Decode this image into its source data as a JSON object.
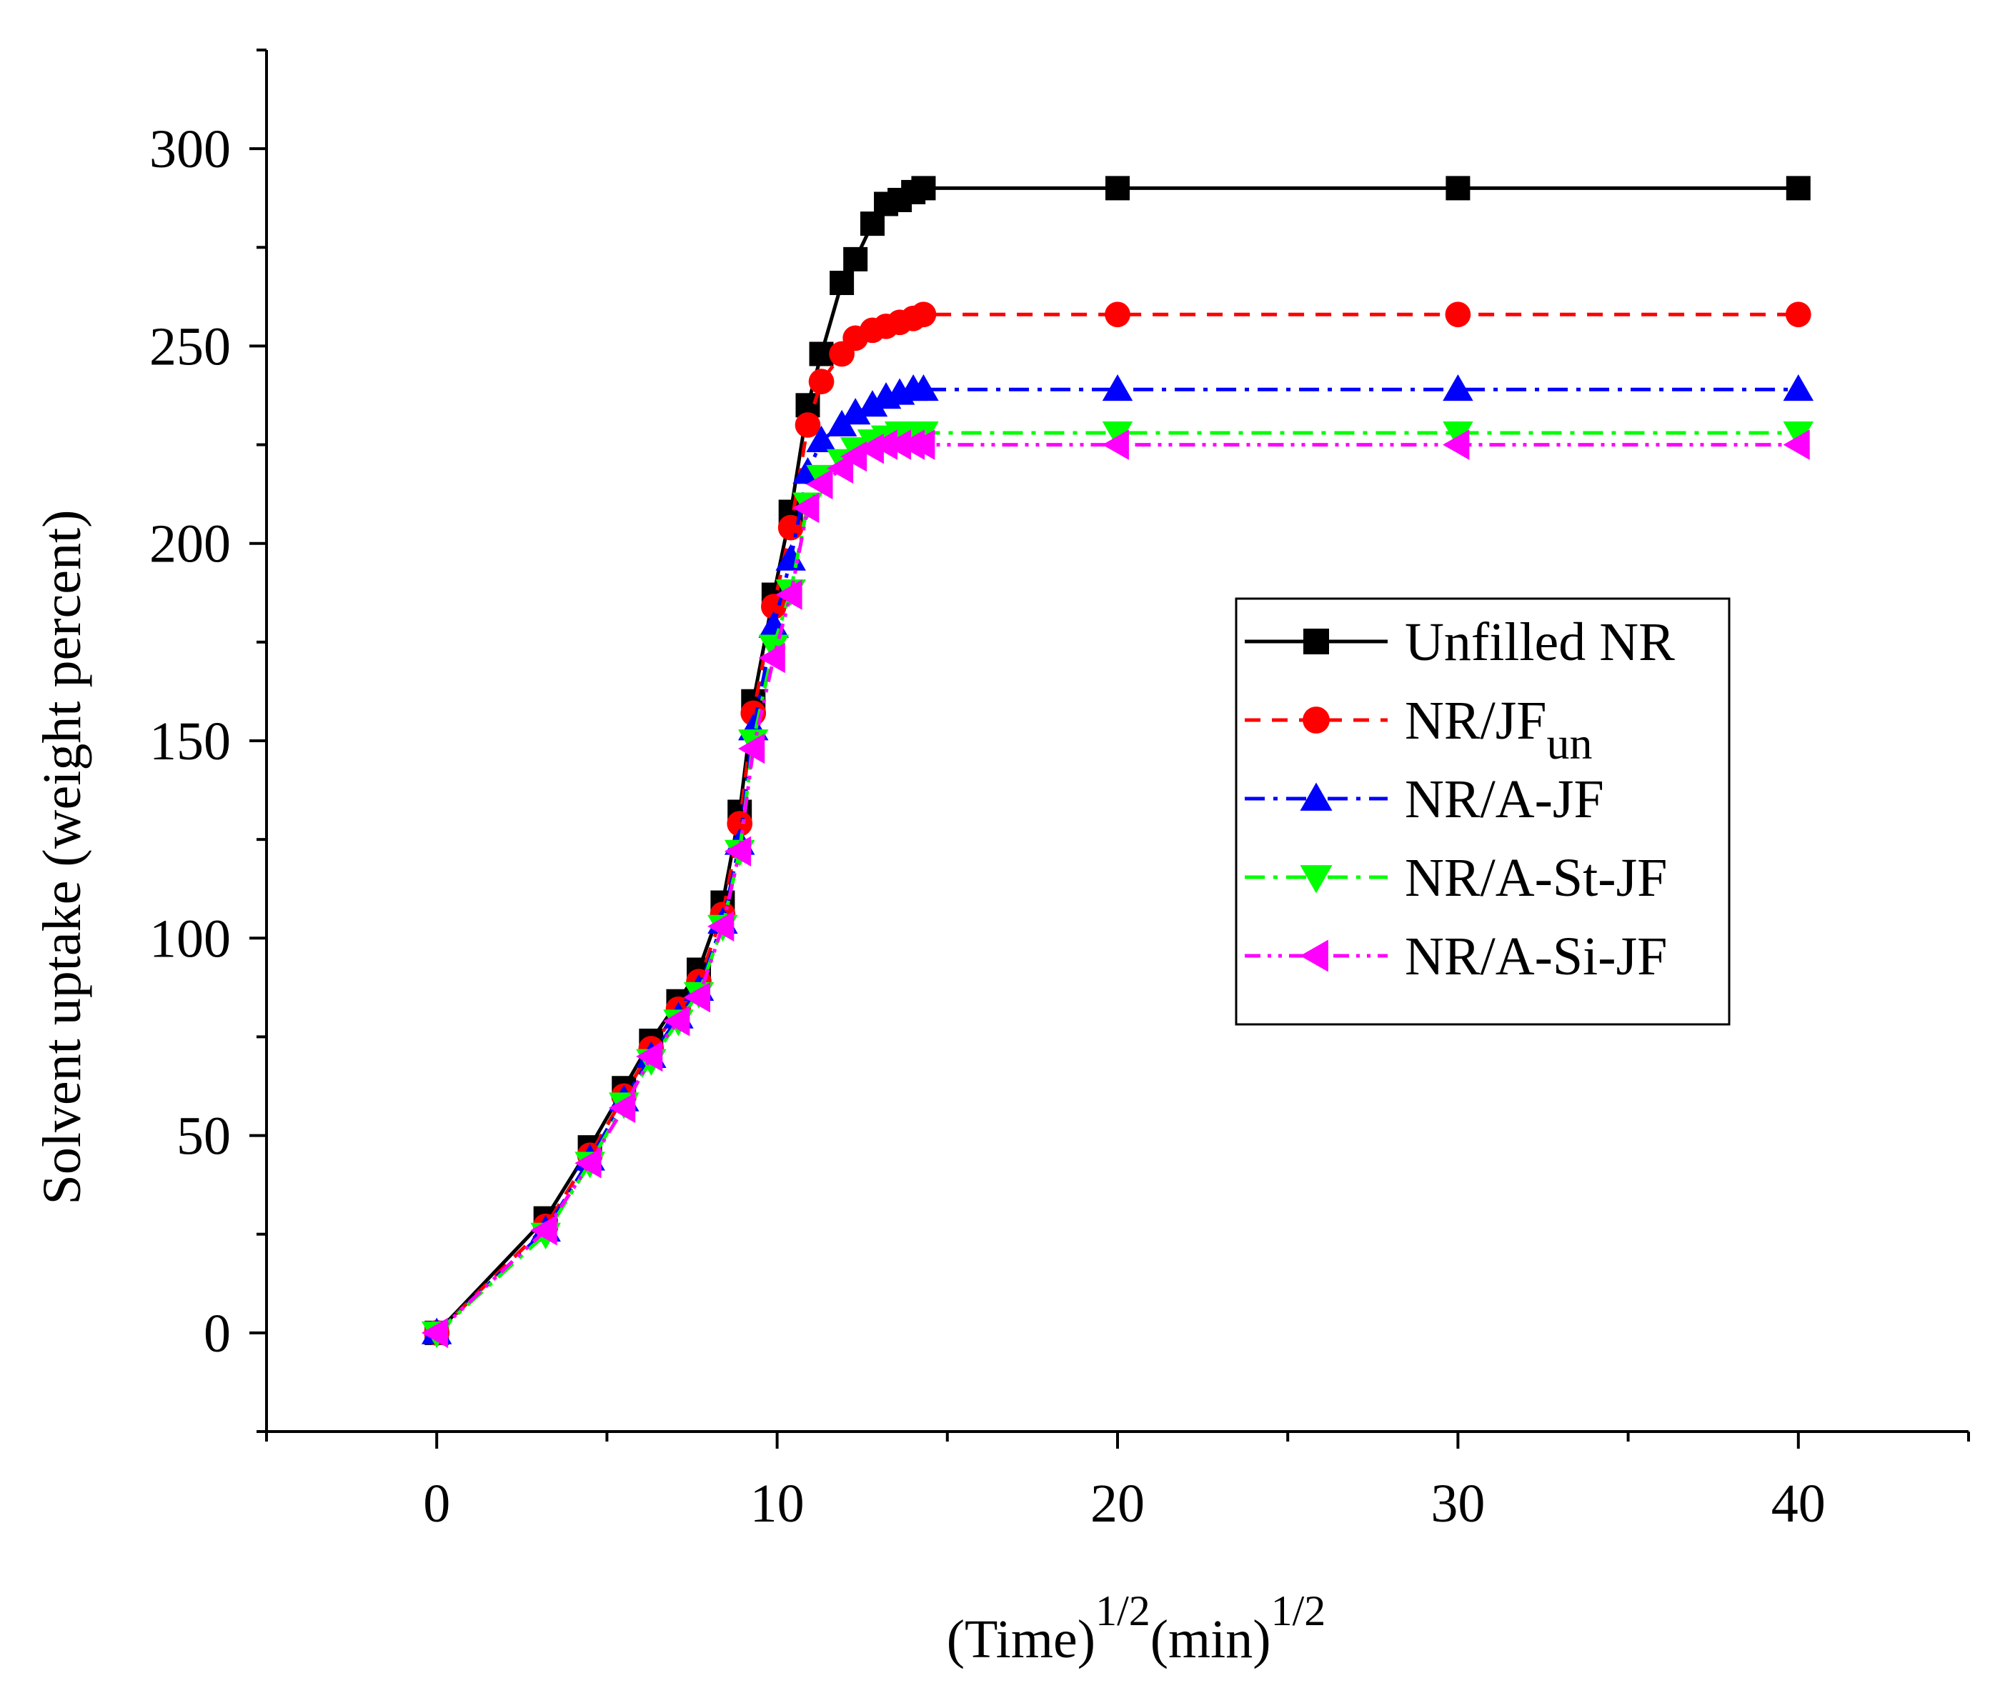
{
  "chart_data": {
    "type": "line",
    "title": "",
    "xlabel": "(Time)",
    "xlabel_sup": "1/2",
    "xlabel_unit": "(min)",
    "xlabel_unit_sup": "1/2",
    "ylabel": "Solvent uptake (weight percent)",
    "xlim": [
      -5,
      45
    ],
    "ylim": [
      -25,
      325
    ],
    "xticks": [
      0,
      10,
      20,
      30,
      40
    ],
    "yticks": [
      0,
      50,
      100,
      150,
      200,
      250,
      300
    ],
    "x_minor_step": 5,
    "y_minor_step": 25,
    "grid": false,
    "legend_position": "center-right",
    "series": [
      {
        "name": "Unfilled NR",
        "name_sub": "",
        "color": "#000000",
        "marker": "square",
        "dash": "solid",
        "x": [
          0,
          3.2,
          4.5,
          5.5,
          6.3,
          7.1,
          7.7,
          8.4,
          8.9,
          9.3,
          9.9,
          10.4,
          10.9,
          11.3,
          11.9,
          12.3,
          12.8,
          13.2,
          13.6,
          14.0,
          14.3,
          20,
          30,
          40
        ],
        "y": [
          0,
          29,
          47,
          62,
          74,
          84,
          92,
          109,
          132,
          160,
          187,
          208,
          235,
          248,
          266,
          272,
          281,
          286,
          287,
          289,
          290,
          290,
          290,
          290
        ]
      },
      {
        "name": "NR/JF",
        "name_sub": "un",
        "color": "#ff0000",
        "marker": "circle",
        "dash": "dashed",
        "x": [
          0,
          3.2,
          4.5,
          5.5,
          6.3,
          7.1,
          7.7,
          8.4,
          8.9,
          9.3,
          9.9,
          10.4,
          10.9,
          11.3,
          11.9,
          12.3,
          12.8,
          13.2,
          13.6,
          14.0,
          14.3,
          20,
          30,
          40
        ],
        "y": [
          0,
          27,
          45,
          60,
          72,
          82,
          89,
          106,
          129,
          157,
          184,
          204,
          230,
          241,
          248,
          252,
          254,
          255,
          256,
          257,
          258,
          258,
          258,
          258
        ]
      },
      {
        "name": "NR/A-JF",
        "name_sub": "",
        "color": "#0000ff",
        "marker": "triangle-up",
        "dash": "dashdot",
        "x": [
          0,
          3.2,
          4.5,
          5.5,
          6.3,
          7.1,
          7.7,
          8.4,
          8.9,
          9.3,
          9.9,
          10.4,
          10.9,
          11.3,
          11.9,
          12.3,
          12.8,
          13.2,
          13.6,
          14.0,
          14.3,
          20,
          30,
          40
        ],
        "y": [
          0,
          26,
          44,
          59,
          70,
          80,
          87,
          104,
          124,
          153,
          179,
          196,
          218,
          226,
          230,
          233,
          235,
          237,
          238,
          239,
          239,
          239,
          239,
          239
        ]
      },
      {
        "name": "NR/A-St-JF",
        "name_sub": "",
        "color": "#00ff00",
        "marker": "triangle-down",
        "dash": "dashdot",
        "x": [
          0,
          3.2,
          4.5,
          5.5,
          6.3,
          7.1,
          7.7,
          8.4,
          8.9,
          9.3,
          9.9,
          10.4,
          10.9,
          11.3,
          11.9,
          12.3,
          12.8,
          13.2,
          13.6,
          14.0,
          14.3,
          20,
          30,
          40
        ],
        "y": [
          0,
          25,
          43,
          58,
          69,
          79,
          86,
          103,
          122,
          150,
          174,
          188,
          210,
          217,
          221,
          224,
          226,
          227,
          228,
          228,
          228,
          228,
          228,
          228
        ]
      },
      {
        "name": "NR/A-Si-JF",
        "name_sub": "",
        "color": "#ff00ff",
        "marker": "triangle-left",
        "dash": "dashdotdot",
        "x": [
          0,
          3.2,
          4.5,
          5.5,
          6.3,
          7.1,
          7.7,
          8.4,
          8.9,
          9.3,
          9.9,
          10.4,
          10.9,
          11.3,
          11.9,
          12.3,
          12.8,
          13.2,
          13.6,
          14.0,
          14.3,
          20,
          30,
          40
        ],
        "y": [
          0,
          26,
          43,
          57,
          70,
          79,
          85,
          103,
          122,
          148,
          171,
          187,
          209,
          215,
          219,
          222,
          224,
          225,
          225,
          225,
          225,
          225,
          225,
          225
        ]
      }
    ]
  }
}
